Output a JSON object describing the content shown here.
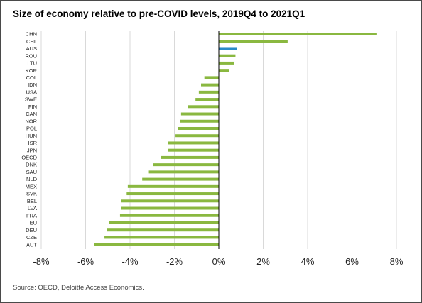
{
  "title": "Size of economy relative to pre-COVID levels, 2019Q4 to 2021Q1",
  "source": "Source: OECD, Deloitte Access Economics.",
  "colors": {
    "bar": "#8ab840",
    "highlight": "#2a8ac8",
    "grid": "#d9d9d9",
    "axis": "#000000"
  },
  "chart_data": {
    "type": "bar",
    "orientation": "horizontal",
    "title": "Size of economy relative to pre-COVID levels, 2019Q4 to 2021Q1",
    "xlabel": "",
    "ylabel": "",
    "xlim": [
      -8,
      8
    ],
    "x_ticks": [
      -8,
      -6,
      -4,
      -2,
      0,
      2,
      4,
      6,
      8
    ],
    "x_tick_labels": [
      "-8%",
      "-6%",
      "-4%",
      "-2%",
      "0%",
      "2%",
      "4%",
      "6%",
      "8%"
    ],
    "grid": true,
    "highlighted_category": "AUS",
    "categories": [
      "CHN",
      "CHL",
      "AUS",
      "ROU",
      "LTU",
      "KOR",
      "COL",
      "IDN",
      "USA",
      "SWE",
      "FIN",
      "CAN",
      "NOR",
      "POL",
      "HUN",
      "ISR",
      "JPN",
      "OECD",
      "DNK",
      "SAU",
      "NLD",
      "MEX",
      "SVK",
      "BEL",
      "LVA",
      "FRA",
      "EU",
      "DEU",
      "CZE",
      "AUT"
    ],
    "values": [
      7.1,
      3.1,
      0.8,
      0.75,
      0.7,
      0.45,
      -0.65,
      -0.8,
      -0.9,
      -1.05,
      -1.4,
      -1.7,
      -1.75,
      -1.85,
      -1.95,
      -2.3,
      -2.3,
      -2.6,
      -2.95,
      -3.15,
      -3.45,
      -4.1,
      -4.15,
      -4.4,
      -4.4,
      -4.45,
      -4.95,
      -5.05,
      -5.15,
      -5.6
    ]
  }
}
